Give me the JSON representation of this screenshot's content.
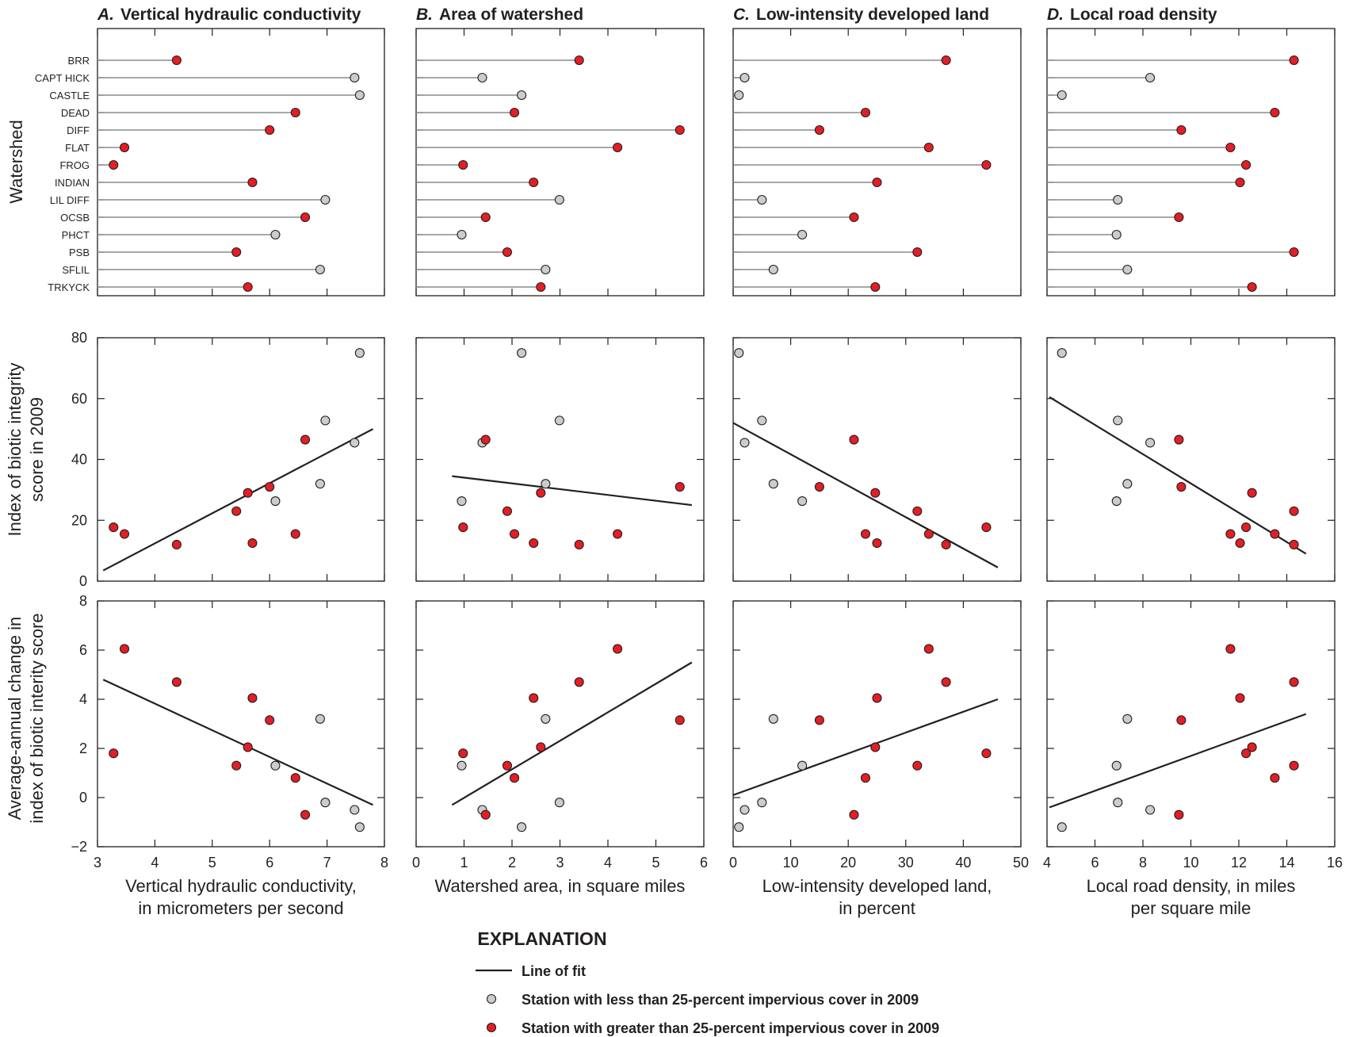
{
  "chart_data": {
    "type": "scatter",
    "colors": {
      "gray_point": "#cccccc",
      "red_point": "#e31e24",
      "stem": "#8c8c8c",
      "fit_line": "#231f20",
      "frame": "#231f20"
    },
    "watershed_label": "Watershed",
    "row_labels": [
      "Index of biotic integrity\nscore in 2009",
      "Average-annual change in\nindex of biotic interity score"
    ],
    "ibi_axis": {
      "ylim": [
        0,
        80
      ],
      "ticks": [
        "0",
        "20",
        "40",
        "60",
        "80"
      ]
    },
    "change_axis": {
      "ylim": [
        -2,
        8
      ],
      "ticks": [
        "−2",
        "0",
        "2",
        "4",
        "6",
        "8"
      ]
    },
    "watersheds": [
      "BRR",
      "CAPT HICK",
      "CASTLE",
      "DEAD",
      "DIFF",
      "FLAT",
      "FROG",
      "INDIAN",
      "LIL DIFF",
      "OCSB",
      "PHCT",
      "PSB",
      "SFLIL",
      "TRKYCK"
    ],
    "high_impervious": [
      true,
      false,
      false,
      true,
      true,
      true,
      true,
      true,
      false,
      true,
      false,
      true,
      false,
      true
    ],
    "ibi_2009": [
      12,
      45.5,
      75,
      15.5,
      31,
      15.5,
      17.7,
      12.5,
      52.8,
      46.5,
      26.3,
      23,
      32,
      29
    ],
    "ibi_change": [
      4.7,
      -0.5,
      -1.2,
      0.8,
      3.15,
      6.05,
      1.8,
      4.05,
      -0.2,
      -0.7,
      1.3,
      1.3,
      3.2,
      2.05
    ],
    "panels": [
      {
        "letter": "A.",
        "title": "Vertical hydraulic conductivity",
        "xlabel": "Vertical hydraulic conductivity,\nin micrometers per second",
        "xlim": [
          3,
          8
        ],
        "xticks": [
          "3",
          "4",
          "5",
          "6",
          "7",
          "8"
        ],
        "x": [
          4.38,
          7.48,
          7.57,
          6.45,
          6.0,
          3.47,
          3.28,
          5.7,
          6.97,
          6.62,
          6.1,
          5.42,
          6.88,
          5.62
        ],
        "fit_ibi": [
          [
            3.1,
            3.5
          ],
          [
            7.8,
            50
          ]
        ],
        "fit_change": [
          [
            3.1,
            4.8
          ],
          [
            7.8,
            -0.3
          ]
        ]
      },
      {
        "letter": "B.",
        "title": "Area of watershed",
        "xlabel": "Watershed area, in square miles",
        "xlim": [
          0,
          6
        ],
        "xticks": [
          "0",
          "1",
          "2",
          "3",
          "4",
          "5",
          "6"
        ],
        "x": [
          3.4,
          1.38,
          2.2,
          2.05,
          5.5,
          4.2,
          0.98,
          2.45,
          2.99,
          1.45,
          0.95,
          1.9,
          2.7,
          2.6
        ],
        "fit_ibi": [
          [
            0.75,
            34.5
          ],
          [
            5.75,
            25
          ]
        ],
        "fit_change": [
          [
            0.75,
            -0.3
          ],
          [
            5.75,
            5.5
          ]
        ]
      },
      {
        "letter": "C.",
        "title": "Low-intensity developed land",
        "xlabel": "Low-intensity developed land,\nin percent",
        "xlim": [
          0,
          50
        ],
        "xticks": [
          "0",
          "10",
          "20",
          "30",
          "40",
          "50"
        ],
        "x": [
          37,
          2,
          1,
          23,
          15,
          34,
          44,
          25,
          5,
          21,
          12,
          32,
          7,
          24.7
        ],
        "fit_ibi": [
          [
            0,
            52
          ],
          [
            46,
            4.5
          ]
        ],
        "fit_change": [
          [
            0,
            0.1
          ],
          [
            46,
            4
          ]
        ]
      },
      {
        "letter": "D.",
        "title": "Local road density",
        "xlabel": "Local road density, in miles\nper square mile",
        "xlim": [
          4,
          16
        ],
        "xticks": [
          "4",
          "6",
          "8",
          "10",
          "12",
          "14",
          "16"
        ],
        "x": [
          14.3,
          8.3,
          4.62,
          13.5,
          9.6,
          11.65,
          12.3,
          12.05,
          6.95,
          9.5,
          6.9,
          14.3,
          7.35,
          12.55
        ],
        "fit_ibi": [
          [
            4.1,
            60.5
          ],
          [
            14.8,
            9
          ]
        ],
        "fit_change": [
          [
            4.1,
            -0.4
          ],
          [
            14.8,
            3.4
          ]
        ]
      }
    ],
    "legend": {
      "heading": "EXPLANATION",
      "line_label": "Line of fit",
      "gray_label": "Station with less than 25-percent impervious cover in 2009",
      "red_label": "Station with greater than 25-percent impervious cover in 2009"
    }
  }
}
